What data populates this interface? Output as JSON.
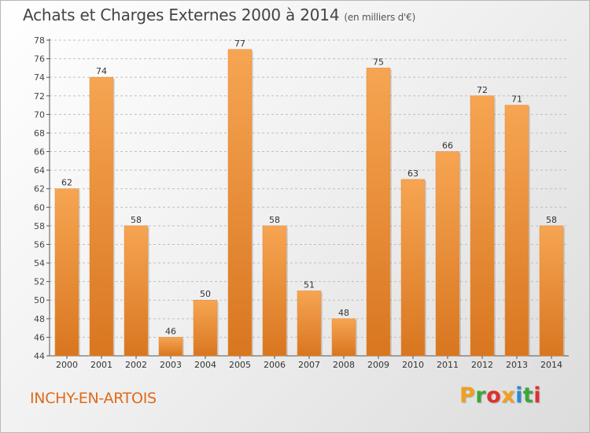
{
  "header": {
    "title": "Achats et Charges Externes 2000 à 2014",
    "unit": "(en milliers d'€)"
  },
  "footer": {
    "place": "INCHY-EN-ARTOIS",
    "logo_letters": [
      "P",
      "r",
      "o",
      "x",
      "i",
      "t",
      "i"
    ],
    "logo_colors": [
      "#f0a020",
      "#3aa63a",
      "#e03030",
      "#f0a020",
      "#2a8ad4",
      "#3aa63a",
      "#e03030"
    ]
  },
  "colors": {
    "bar_light": "#f6a552",
    "bar_dark": "#d97620",
    "grid": "#bfbfbf"
  },
  "chart_data": {
    "type": "bar",
    "categories": [
      "2000",
      "2001",
      "2002",
      "2003",
      "2004",
      "2005",
      "2006",
      "2007",
      "2008",
      "2009",
      "2010",
      "2011",
      "2012",
      "2013",
      "2014"
    ],
    "values": [
      62,
      74,
      58,
      46,
      50,
      77,
      58,
      51,
      48,
      75,
      63,
      66,
      72,
      71,
      58
    ],
    "ylim": [
      44,
      78
    ],
    "yticks": [
      44,
      46,
      48,
      50,
      52,
      54,
      56,
      58,
      60,
      62,
      64,
      66,
      68,
      70,
      72,
      74,
      76,
      78
    ],
    "grid": "horizontal-dashed",
    "legend": "none"
  }
}
